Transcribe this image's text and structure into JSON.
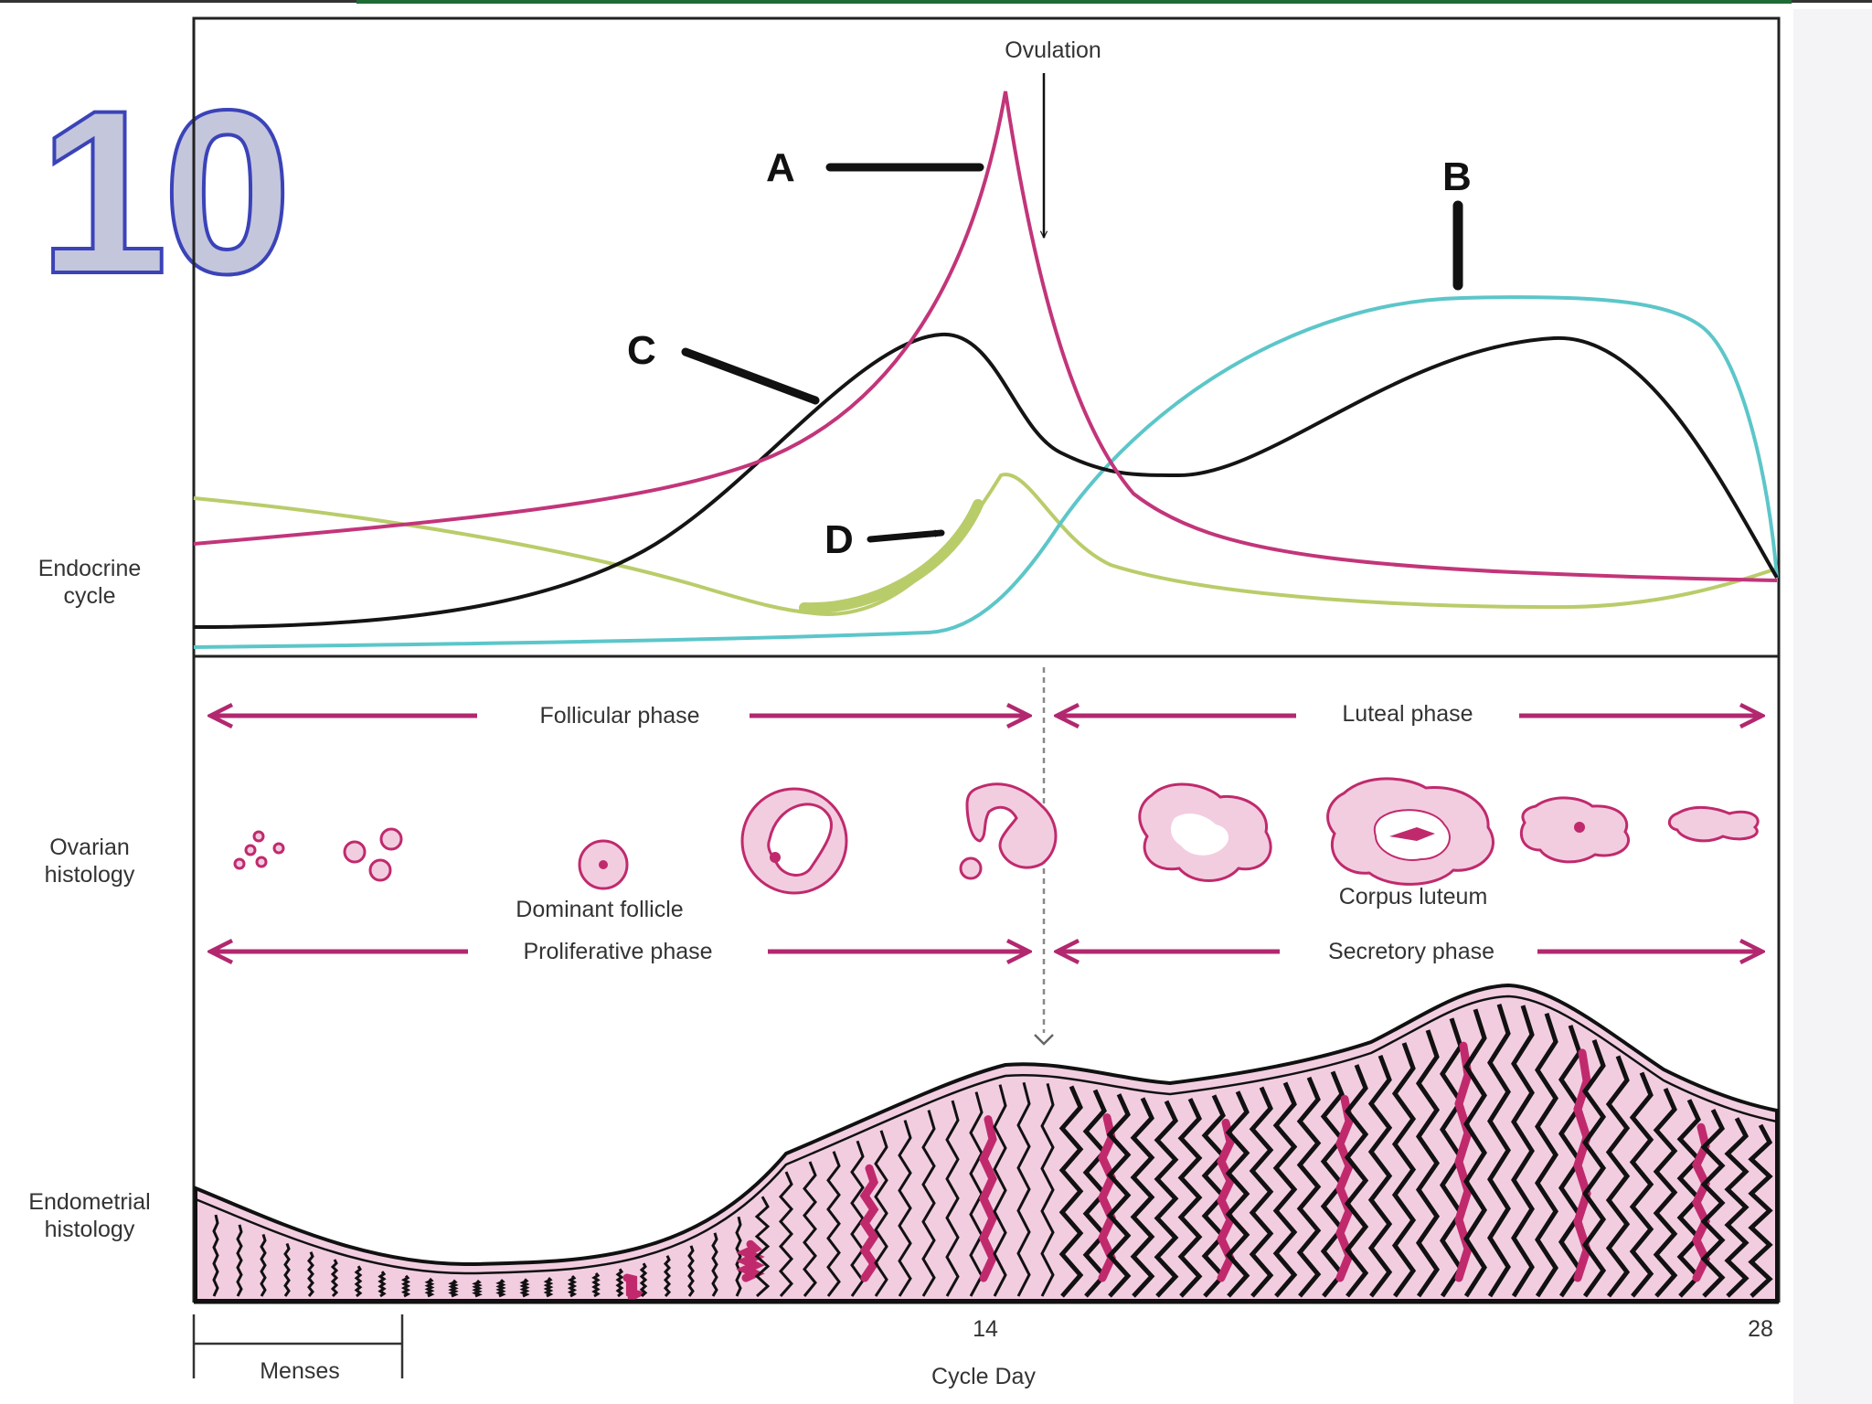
{
  "slide_number": "10",
  "colors": {
    "hormone_a": "#c2357a",
    "hormone_b": "#5cc6c9",
    "hormone_c": "#141414",
    "hormone_d": "#b9cc6a",
    "phase_arrow": "#b2286f",
    "tissue_fill": "#f2cde0",
    "tissue_accent": "#c02a6d",
    "top_bar": "#1f6b35"
  },
  "labels": {
    "ovulation": "Ovulation",
    "letter_a": "A",
    "letter_b": "B",
    "letter_c": "C",
    "letter_d": "D",
    "endocrine_line1": "Endocrine",
    "endocrine_line2": "cycle",
    "ovarian_line1": "Ovarian",
    "ovarian_line2": "histology",
    "endometrial_line1": "Endometrial",
    "endometrial_line2": "histology",
    "follicular_phase": "Follicular phase",
    "luteal_phase": "Luteal  phase",
    "dominant_follicle": "Dominant follicle",
    "corpus_luteum": "Corpus luteum",
    "proliferative_phase": "Proliferative phase",
    "secretory_phase": "Secretory phase",
    "day_14": "14",
    "day_28": "28",
    "menses": "Menses",
    "cycle_day": "Cycle Day"
  }
}
